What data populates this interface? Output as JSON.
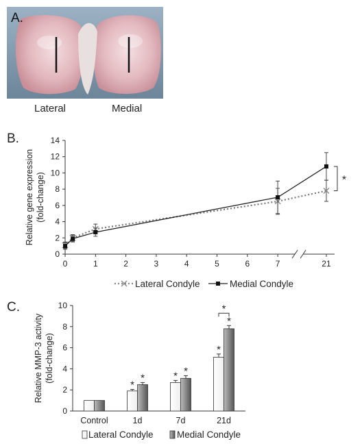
{
  "panels": {
    "a": "A.",
    "b": "B.",
    "c": "C."
  },
  "photo": {
    "captions": [
      "Lateral",
      "Medial"
    ]
  },
  "chart_data": [
    {
      "type": "line",
      "title": "",
      "ylabel": "Relative gene expression (fold-change)",
      "ylabel_lines": [
        "Relative gene expression",
        "(fold-change)"
      ],
      "xlabel": "",
      "x_ticks": [
        "0",
        "1",
        "2",
        "3",
        "4",
        "5",
        "6",
        "7",
        "21"
      ],
      "y_ticks": [
        "0",
        "2",
        "4",
        "6",
        "8",
        "10",
        "12",
        "14"
      ],
      "ylim": [
        0,
        14
      ],
      "x_axis_break": true,
      "legend_position": "bottom",
      "series": [
        {
          "name": "Lateral Condyle",
          "marker": "x",
          "line_style": "dotted",
          "x": [
            0,
            0.25,
            1,
            7,
            21
          ],
          "y": [
            1.1,
            2.0,
            3.1,
            6.5,
            7.8
          ],
          "err": [
            0.4,
            0.4,
            0.6,
            1.6,
            1.3
          ]
        },
        {
          "name": "Medial Condyle",
          "marker": "square",
          "line_style": "solid",
          "x": [
            0,
            0.25,
            1,
            7,
            21
          ],
          "y": [
            1.0,
            1.9,
            2.7,
            7.0,
            10.8
          ],
          "err": [
            0.4,
            0.4,
            0.5,
            2.0,
            1.7
          ]
        }
      ],
      "annotations": [
        "*"
      ]
    },
    {
      "type": "bar",
      "title": "",
      "ylabel": "Relative MMP-3 activity (fold-change)",
      "ylabel_lines": [
        "Relative MMP-3 activity",
        "(fold-change)"
      ],
      "xlabel": "",
      "categories": [
        "Control",
        "1d",
        "7d",
        "21d"
      ],
      "y_ticks": [
        "0",
        "2",
        "4",
        "6",
        "8",
        "10"
      ],
      "ylim": [
        0,
        10
      ],
      "legend_position": "bottom",
      "series": [
        {
          "name": "Lateral Condyle",
          "values": [
            1.0,
            1.9,
            2.7,
            5.1
          ],
          "err": [
            0.0,
            0.15,
            0.2,
            0.3
          ],
          "color": "#eeeeee"
        },
        {
          "name": "Medial Condyle",
          "values": [
            1.0,
            2.5,
            3.1,
            7.8
          ],
          "err": [
            0.0,
            0.2,
            0.25,
            0.3
          ],
          "color": "#555555"
        }
      ],
      "significance": [
        [
          false,
          true,
          true,
          true
        ],
        [
          false,
          true,
          true,
          true
        ]
      ],
      "annotations": [
        "*"
      ]
    }
  ]
}
